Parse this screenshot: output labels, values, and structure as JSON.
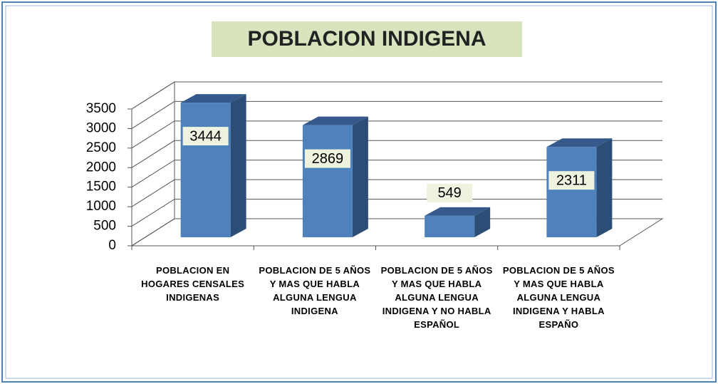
{
  "chart_data": {
    "type": "bar3d",
    "title": "POBLACION INDIGENA",
    "categories": [
      "POBLACION EN HOGARES CENSALES INDIGENAS",
      "POBLACION DE 5 AÑOS Y MAS QUE HABLA ALGUNA LENGUA INDIGENA",
      "POBLACION DE 5 AÑOS Y MAS QUE HABLA ALGUNA LENGUA INDIGENA Y NO HABLA ESPAÑOL",
      "POBLACION DE 5 AÑOS Y MAS QUE HABLA ALGUNA LENGUA INDIGENA Y HABLA ESPAÑO"
    ],
    "values": [
      3444,
      2869,
      549,
      2311
    ],
    "color": "#4f81bd",
    "ylim": [
      0,
      3500
    ],
    "yticks": [
      0,
      500,
      1000,
      1500,
      2000,
      2500,
      3000,
      3500
    ],
    "grid": true
  }
}
